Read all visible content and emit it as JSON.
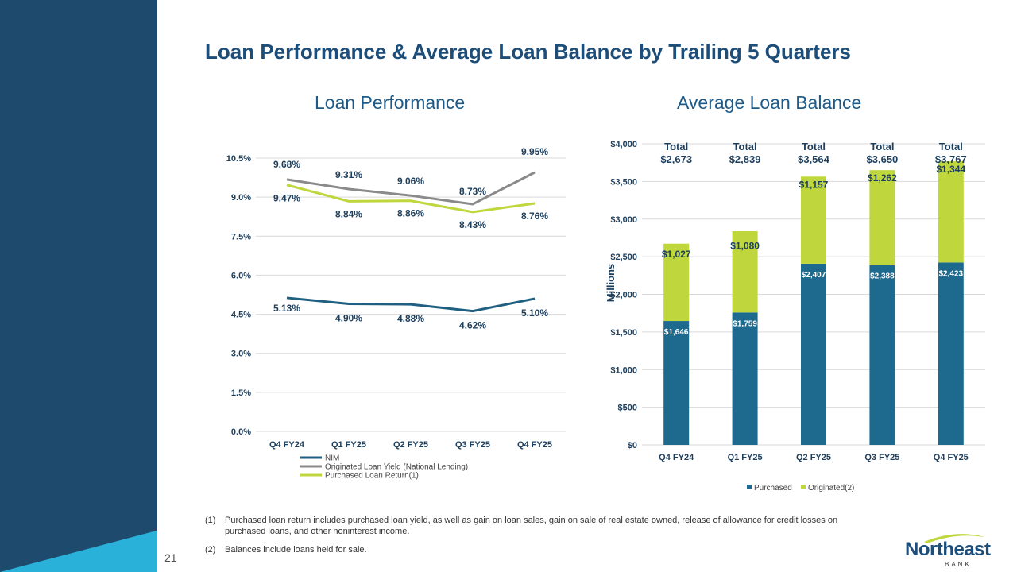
{
  "slide": {
    "title": "Loan Performance & Average Loan Balance by Trailing 5 Quarters",
    "page_number": "21",
    "logo_word": "Northeast",
    "logo_sub": "BANK",
    "colors": {
      "sidebar_dark": "#1e4a6e",
      "sidebar_light": "#2ab1d9",
      "title": "#1d4e7a"
    }
  },
  "footnotes": [
    {
      "num": "(1)",
      "text": "Purchased loan return includes purchased loan yield, as well as gain on loan sales, gain on sale of real estate owned, release of allowance for credit losses on purchased loans, and other noninterest income."
    },
    {
      "num": "(2)",
      "text": "Balances include loans held for sale."
    }
  ],
  "chart_data": [
    {
      "type": "line",
      "title": "Loan Performance",
      "categories": [
        "Q4 FY24",
        "Q1 FY25",
        "Q2 FY25",
        "Q3 FY25",
        "Q4 FY25"
      ],
      "y_ticks": [
        "0.0%",
        "1.5%",
        "3.0%",
        "4.5%",
        "6.0%",
        "7.5%",
        "9.0%",
        "10.5%"
      ],
      "ylim": [
        0,
        10.5
      ],
      "grid": true,
      "legend": "bottom",
      "series": [
        {
          "name": "NIM",
          "color": "#1f5f82",
          "values": [
            5.13,
            4.9,
            4.88,
            4.62,
            5.1
          ],
          "labels": [
            "5.13%",
            "4.90%",
            "4.88%",
            "4.62%",
            "5.10%"
          ]
        },
        {
          "name": "Originated Loan Yield (National Lending)",
          "color": "#8a8a8a",
          "values": [
            9.68,
            9.31,
            9.06,
            8.73,
            9.95
          ],
          "labels": [
            "9.68%",
            "9.31%",
            "9.06%",
            "8.73%",
            "9.95%"
          ]
        },
        {
          "name": "Purchased Loan Return(1)",
          "color": "#bfd63c",
          "values": [
            9.47,
            8.84,
            8.86,
            8.43,
            8.76
          ],
          "labels": [
            "9.47%",
            "8.84%",
            "8.86%",
            "8.43%",
            "8.76%"
          ]
        }
      ]
    },
    {
      "type": "bar",
      "stacked": true,
      "title": "Average Loan Balance",
      "ylabel": "Millions",
      "categories": [
        "Q4 FY24",
        "Q1 FY25",
        "Q2 FY25",
        "Q3 FY25",
        "Q4 FY25"
      ],
      "y_ticks": [
        "$0",
        "$500",
        "$1,000",
        "$1,500",
        "$2,000",
        "$2,500",
        "$3,000",
        "$3,500",
        "$4,000"
      ],
      "ylim": [
        0,
        4000
      ],
      "grid": true,
      "legend": "bottom",
      "series": [
        {
          "name": "Purchased",
          "color": "#1e6a8e",
          "values": [
            1646,
            1759,
            2407,
            2388,
            2423
          ],
          "labels": [
            "$1,646",
            "$1,759",
            "$2,407",
            "$2,388",
            "$2,423"
          ]
        },
        {
          "name": "Originated(2)",
          "color": "#bfd63c",
          "values": [
            1027,
            1080,
            1157,
            1262,
            1344
          ],
          "labels": [
            "$1,027",
            "$1,080",
            "$1,157",
            "$1,262",
            "$1,344"
          ]
        }
      ],
      "totals_prefix": "Total",
      "totals": [
        "$2,673",
        "$2,839",
        "$3,564",
        "$3,650",
        "$3,767"
      ]
    }
  ]
}
